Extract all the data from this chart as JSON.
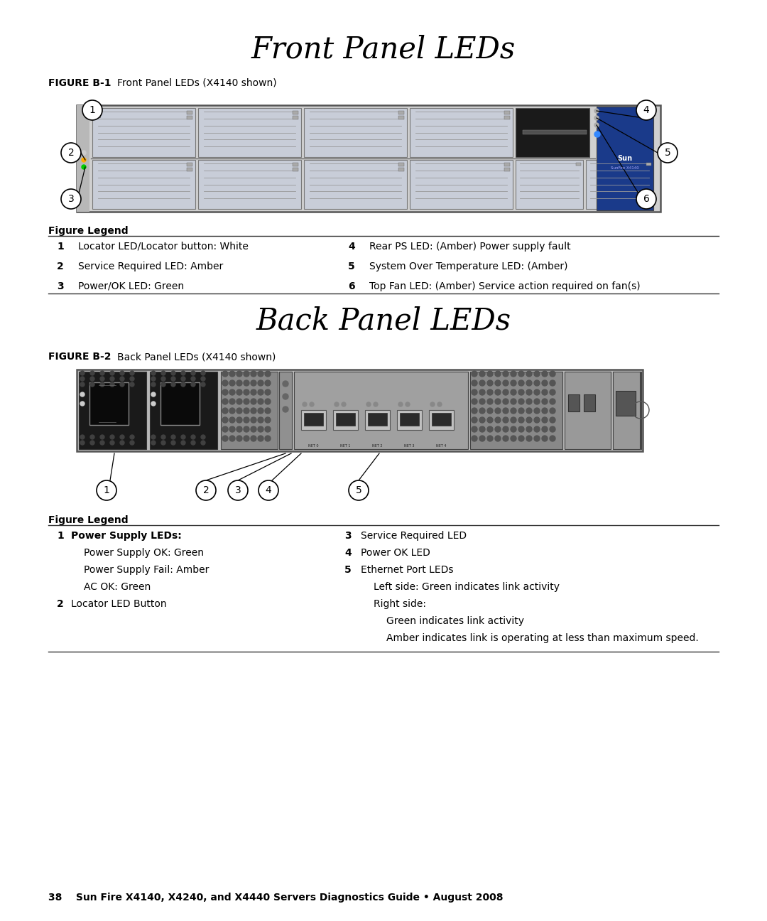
{
  "title1": "Front Panel LEDs",
  "title2": "Back Panel LEDs",
  "fig_label1": "FIGURE B-1",
  "fig_caption1": "Front Panel LEDs (X4140 shown)",
  "fig_label2": "FIGURE B-2",
  "fig_caption2": "Back Panel LEDs (X4140 shown)",
  "legend1_title": "Figure Legend",
  "legend1_left": [
    {
      "num": "1",
      "text": "Locator LED/Locator button: White"
    },
    {
      "num": "2",
      "text": "Service Required LED: Amber"
    },
    {
      "num": "3",
      "text": "Power/OK LED: Green"
    }
  ],
  "legend1_right": [
    {
      "num": "4",
      "text": "Rear PS LED: (Amber) Power supply fault"
    },
    {
      "num": "5",
      "text": "System Over Temperature LED: (Amber)"
    },
    {
      "num": "6",
      "text": "Top Fan LED: (Amber) Service action required on fan(s)"
    }
  ],
  "legend2_title": "Figure Legend",
  "legend2_left": [
    {
      "num": "1",
      "text": "Power Supply LEDs:",
      "bold": true,
      "indent": 0
    },
    {
      "num": "",
      "text": "Power Supply OK: Green",
      "bold": false,
      "indent": 1
    },
    {
      "num": "",
      "text": "Power Supply Fail: Amber",
      "bold": false,
      "indent": 1
    },
    {
      "num": "",
      "text": "AC OK: Green",
      "bold": false,
      "indent": 1
    },
    {
      "num": "2",
      "text": "Locator LED Button",
      "bold": false,
      "indent": 0
    }
  ],
  "legend2_right": [
    {
      "num": "3",
      "text": "Service Required LED",
      "bold": false,
      "indent": 0
    },
    {
      "num": "4",
      "text": "Power OK LED",
      "bold": false,
      "indent": 0
    },
    {
      "num": "5",
      "text": "Ethernet Port LEDs",
      "bold": false,
      "indent": 0
    },
    {
      "num": "",
      "text": "Left side: Green indicates link activity",
      "bold": false,
      "indent": 1
    },
    {
      "num": "",
      "text": "Right side:",
      "bold": false,
      "indent": 1
    },
    {
      "num": "",
      "text": "Green indicates link activity",
      "bold": false,
      "indent": 2
    },
    {
      "num": "",
      "text": "Amber indicates link is operating at less than maximum speed.",
      "bold": false,
      "indent": 2
    }
  ],
  "footer": "38    Sun Fire X4140, X4240, and X4440 Servers Diagnostics Guide • August 2008",
  "bg_color": "#ffffff"
}
